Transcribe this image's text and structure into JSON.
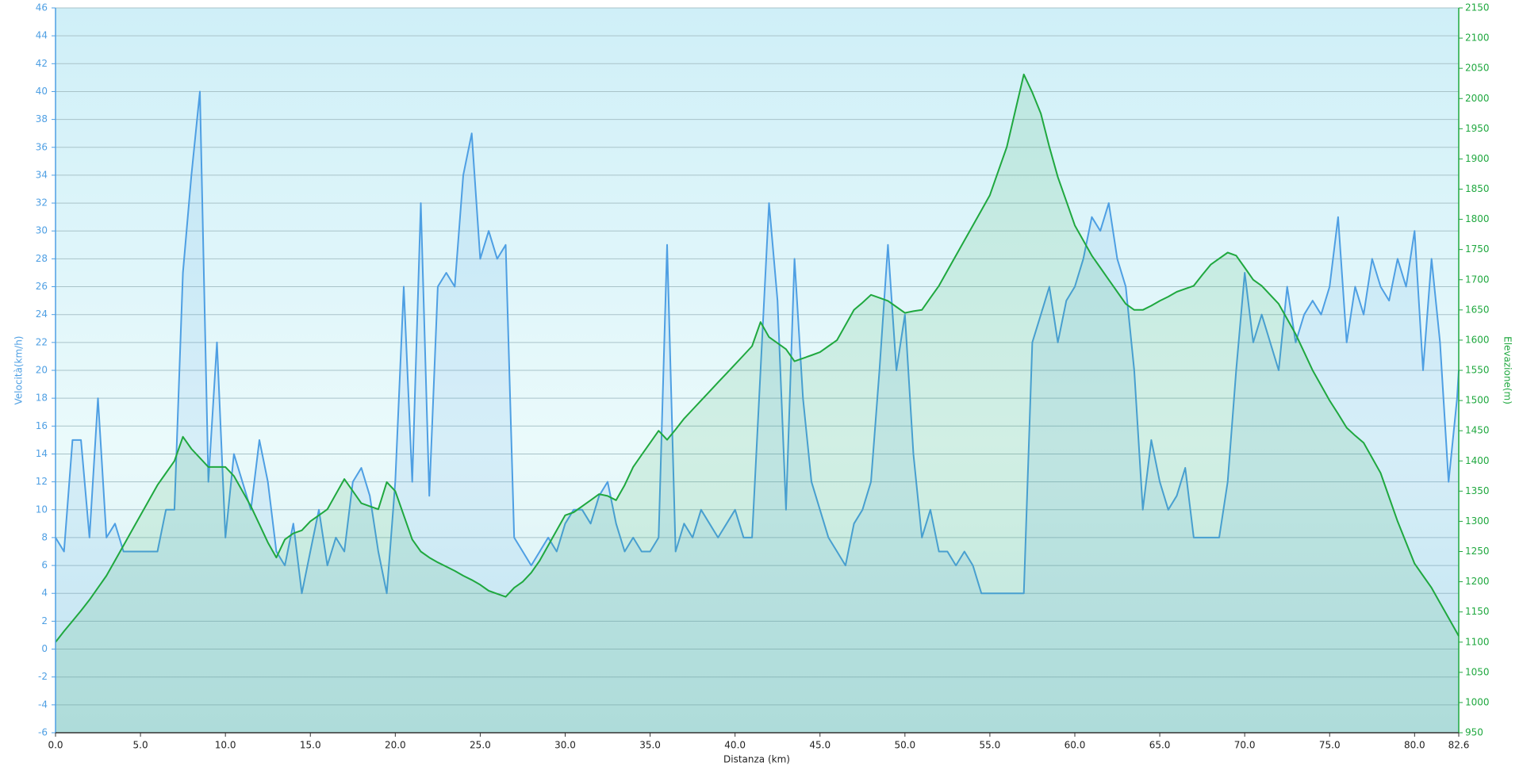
{
  "chart_data": {
    "type": "line",
    "x_label": "Distanza  (km)",
    "y_label": "Velocità(km/h)",
    "y2_label": "Elevazione(m)",
    "x": [
      0,
      0.5,
      1,
      1.5,
      2,
      2.5,
      3,
      3.5,
      4,
      4.5,
      5,
      5.5,
      6,
      6.5,
      7,
      7.5,
      8,
      8.5,
      9,
      9.5,
      10,
      10.5,
      11,
      11.5,
      12,
      12.5,
      13,
      13.5,
      14,
      14.5,
      15,
      15.5,
      16,
      16.5,
      17,
      17.5,
      18,
      18.5,
      19,
      19.5,
      20,
      20.5,
      21,
      21.5,
      22,
      22.5,
      23,
      23.5,
      24,
      24.5,
      25,
      25.5,
      26,
      26.5,
      27,
      27.5,
      28,
      28.5,
      29,
      29.5,
      30,
      30.5,
      31,
      31.5,
      32,
      32.5,
      33,
      33.5,
      34,
      34.5,
      35,
      35.5,
      36,
      36.5,
      37,
      37.5,
      38,
      38.5,
      39,
      39.5,
      40,
      40.5,
      41,
      41.5,
      42,
      42.5,
      43,
      43.5,
      44,
      44.5,
      45,
      45.5,
      46,
      46.5,
      47,
      47.5,
      48,
      48.5,
      49,
      49.5,
      50,
      50.5,
      51,
      51.5,
      52,
      52.5,
      53,
      53.5,
      54,
      54.5,
      55,
      55.5,
      56,
      56.5,
      57,
      57.5,
      58,
      58.5,
      59,
      59.5,
      60,
      60.5,
      61,
      61.5,
      62,
      62.5,
      63,
      63.5,
      64,
      64.5,
      65,
      65.5,
      66,
      66.5,
      67,
      67.5,
      68,
      68.5,
      69,
      69.5,
      70,
      70.5,
      71,
      71.5,
      72,
      72.5,
      73,
      73.5,
      74,
      74.5,
      75,
      75.5,
      76,
      76.5,
      77,
      77.5,
      78,
      78.5,
      79,
      79.5,
      80,
      80.5,
      81,
      81.5,
      82,
      82.5,
      82.6
    ],
    "series": [
      {
        "name": "Velocità",
        "color": "#4e9fe3",
        "values": [
          8,
          7,
          15,
          15,
          8,
          18,
          8,
          9,
          7,
          7,
          7,
          7,
          7,
          10,
          10,
          27,
          34,
          40,
          12,
          22,
          8,
          14,
          12,
          10,
          15,
          12,
          7,
          6,
          9,
          4,
          7,
          10,
          6,
          8,
          7,
          12,
          13,
          11,
          7,
          4,
          12,
          26,
          12,
          32,
          11,
          26,
          27,
          26,
          34,
          37,
          28,
          30,
          28,
          29,
          8,
          7,
          6,
          7,
          8,
          7,
          9,
          10,
          10,
          9,
          11,
          12,
          9,
          7,
          8,
          7,
          7,
          8,
          29,
          7,
          9,
          8,
          10,
          9,
          8,
          9,
          10,
          8,
          8,
          20,
          32,
          25,
          10,
          28,
          18,
          12,
          10,
          8,
          7,
          6,
          9,
          10,
          12,
          20,
          29,
          20,
          24,
          14,
          8,
          10,
          7,
          7,
          6,
          7,
          6,
          4,
          4,
          4,
          4,
          4,
          4,
          22,
          24,
          26,
          22,
          25,
          26,
          28,
          31,
          30,
          32,
          28,
          26,
          20,
          10,
          15,
          12,
          10,
          11,
          13,
          8,
          8,
          8,
          8,
          12,
          20,
          27,
          22,
          24,
          22,
          20,
          26,
          22,
          24,
          25,
          24,
          26,
          31,
          22,
          26,
          24,
          28,
          26,
          25,
          28,
          26,
          30,
          20,
          28,
          22,
          12,
          18,
          20
        ]
      },
      {
        "name": "Elevazione",
        "color": "#1fa83f",
        "axis": "y2",
        "values": [
          1100,
          1118,
          1135,
          1152,
          1170,
          1190,
          1210,
          1235,
          1260,
          1285,
          1310,
          1335,
          1360,
          1380,
          1400,
          1440,
          1420,
          1405,
          1390,
          1390,
          1390,
          1375,
          1350,
          1325,
          1295,
          1265,
          1240,
          1270,
          1280,
          1285,
          1300,
          1310,
          1320,
          1345,
          1370,
          1350,
          1330,
          1325,
          1320,
          1365,
          1350,
          1310,
          1270,
          1250,
          1240,
          1232,
          1225,
          1218,
          1210,
          1203,
          1195,
          1185,
          1180,
          1175,
          1190,
          1200,
          1215,
          1235,
          1260,
          1285,
          1310,
          1315,
          1325,
          1335,
          1345,
          1342,
          1335,
          1360,
          1390,
          1410,
          1430,
          1450,
          1435,
          1452,
          1470,
          1485,
          1500,
          1515,
          1530,
          1545,
          1560,
          1575,
          1590,
          1630,
          1605,
          1595,
          1585,
          1565,
          1570,
          1575,
          1580,
          1590,
          1600,
          1625,
          1650,
          1662,
          1675,
          1670,
          1665,
          1655,
          1645,
          1648,
          1650,
          1670,
          1690,
          1715,
          1740,
          1765,
          1790,
          1815,
          1840,
          1880,
          1920,
          1980,
          2040,
          2010,
          1975,
          1920,
          1870,
          1830,
          1790,
          1765,
          1740,
          1720,
          1700,
          1680,
          1660,
          1650,
          1650,
          1657,
          1665,
          1672,
          1680,
          1685,
          1690,
          1708,
          1725,
          1735,
          1745,
          1740,
          1720,
          1700,
          1690,
          1675,
          1660,
          1635,
          1610,
          1580,
          1550,
          1525,
          1500,
          1478,
          1455,
          1442,
          1430,
          1405,
          1380,
          1340,
          1300,
          1265,
          1230,
          1210,
          1190,
          1165,
          1140,
          1115,
          1110
        ]
      }
    ],
    "xlim": [
      0,
      82.6
    ],
    "xticks": [
      {
        "value": 0,
        "label": "0.0"
      },
      {
        "value": 5,
        "label": "5.0"
      },
      {
        "value": 10,
        "label": "10.0"
      },
      {
        "value": 15,
        "label": "15.0"
      },
      {
        "value": 20,
        "label": "20.0"
      },
      {
        "value": 25,
        "label": "25.0"
      },
      {
        "value": 30,
        "label": "30.0"
      },
      {
        "value": 35,
        "label": "35.0"
      },
      {
        "value": 40,
        "label": "40.0"
      },
      {
        "value": 45,
        "label": "45.0"
      },
      {
        "value": 50,
        "label": "50.0"
      },
      {
        "value": 55,
        "label": "55.0"
      },
      {
        "value": 60,
        "label": "60.0"
      },
      {
        "value": 65,
        "label": "65.0"
      },
      {
        "value": 70,
        "label": "70.0"
      },
      {
        "value": 75,
        "label": "75.0"
      },
      {
        "value": 80,
        "label": "80.0"
      },
      82.6
    ],
    "ylim": [
      -6,
      46
    ],
    "yticks": [
      -6,
      -4,
      -2,
      0,
      2,
      4,
      6,
      8,
      10,
      12,
      14,
      16,
      18,
      20,
      22,
      24,
      26,
      28,
      30,
      32,
      34,
      36,
      38,
      40,
      42,
      44,
      46
    ],
    "y2lim": [
      950,
      2150
    ],
    "y2ticks": [
      950,
      1000,
      1050,
      1100,
      1150,
      1200,
      1250,
      1300,
      1350,
      1400,
      1450,
      1500,
      1550,
      1600,
      1650,
      1700,
      1750,
      1800,
      1850,
      1900,
      1950,
      2000,
      2050,
      2100,
      2150
    ],
    "grid": true
  }
}
